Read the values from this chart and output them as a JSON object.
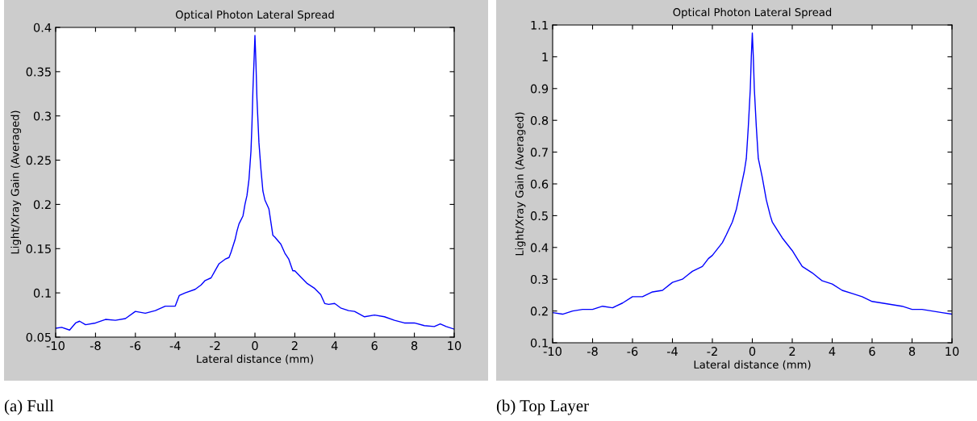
{
  "chart_data": [
    {
      "type": "line",
      "title": "Optical Photon Lateral Spread",
      "xlabel": "Lateral distance (mm)",
      "ylabel": "Light/Xray Gain (Averaged)",
      "annotations": [
        "(a) Full"
      ],
      "xlim": [
        -10,
        10
      ],
      "xticks": [
        -10,
        -8,
        -6,
        -4,
        -2,
        0,
        2,
        4,
        6,
        8,
        10
      ],
      "ylim": [
        0.05,
        0.4
      ],
      "yticks": [
        0.05,
        0.1,
        0.15,
        0.2,
        0.25,
        0.3,
        0.35,
        0.4
      ],
      "grid": false,
      "legend": false,
      "series": [
        {
          "color": "#0000ff",
          "x": [
            -10,
            -9.7,
            -9.3,
            -9,
            -8.8,
            -8.5,
            -8,
            -7.5,
            -7,
            -6.5,
            -6,
            -5.5,
            -5,
            -4.5,
            -4,
            -3.8,
            -3.5,
            -3,
            -2.7,
            -2.5,
            -2.2,
            -2,
            -1.8,
            -1.5,
            -1.3,
            -1.2,
            -1,
            -0.9,
            -0.8,
            -0.6,
            -0.5,
            -0.4,
            -0.3,
            -0.2,
            -0.15,
            -0.1,
            -0.05,
            0,
            0.05,
            0.1,
            0.2,
            0.3,
            0.4,
            0.5,
            0.7,
            0.8,
            0.9,
            1,
            1.3,
            1.5,
            1.7,
            1.9,
            2,
            2.3,
            2.6,
            3,
            3.3,
            3.5,
            3.7,
            4,
            4.3,
            4.7,
            5,
            5.5,
            6,
            6.5,
            7,
            7.5,
            8,
            8.5,
            9,
            9.3,
            9.6,
            10
          ],
          "values": [
            0.06,
            0.061,
            0.058,
            0.066,
            0.068,
            0.064,
            0.066,
            0.07,
            0.069,
            0.071,
            0.079,
            0.077,
            0.08,
            0.085,
            0.085,
            0.097,
            0.1,
            0.104,
            0.109,
            0.114,
            0.117,
            0.125,
            0.133,
            0.138,
            0.14,
            0.146,
            0.16,
            0.17,
            0.178,
            0.187,
            0.2,
            0.21,
            0.228,
            0.26,
            0.29,
            0.33,
            0.36,
            0.391,
            0.36,
            0.32,
            0.27,
            0.24,
            0.215,
            0.205,
            0.195,
            0.18,
            0.165,
            0.163,
            0.155,
            0.145,
            0.138,
            0.125,
            0.125,
            0.118,
            0.111,
            0.105,
            0.098,
            0.088,
            0.087,
            0.088,
            0.083,
            0.08,
            0.079,
            0.073,
            0.075,
            0.073,
            0.069,
            0.066,
            0.066,
            0.063,
            0.062,
            0.065,
            0.062,
            0.059
          ]
        }
      ]
    },
    {
      "type": "line",
      "title": "Optical Photon Lateral Spread",
      "xlabel": "Lateral distance (mm)",
      "ylabel": "Light/Xray Gain (Averaged)",
      "annotations": [
        "(b) Top Layer"
      ],
      "xlim": [
        -10,
        10
      ],
      "xticks": [
        -10,
        -8,
        -6,
        -4,
        -2,
        0,
        2,
        4,
        6,
        8,
        10
      ],
      "ylim": [
        0.1,
        1.1
      ],
      "yticks": [
        0.1,
        0.2,
        0.3,
        0.4,
        0.5,
        0.6,
        0.7,
        0.8,
        0.9,
        1,
        1.1
      ],
      "grid": false,
      "legend": false,
      "series": [
        {
          "color": "#0000ff",
          "x": [
            -10,
            -9.5,
            -9,
            -8.5,
            -8,
            -7.5,
            -7,
            -6.5,
            -6,
            -5.5,
            -5,
            -4.5,
            -4,
            -3.5,
            -3.2,
            -3,
            -2.5,
            -2.2,
            -2,
            -1.5,
            -1.3,
            -1,
            -0.8,
            -0.6,
            -0.5,
            -0.4,
            -0.3,
            -0.2,
            -0.1,
            -0.05,
            0,
            0.05,
            0.1,
            0.2,
            0.3,
            0.5,
            0.7,
            0.9,
            1,
            1.5,
            2,
            2.3,
            2.5,
            3,
            3.5,
            4,
            4.5,
            5,
            5.5,
            6,
            6.5,
            7,
            7.5,
            8,
            8.5,
            9,
            9.5,
            10
          ],
          "values": [
            0.195,
            0.19,
            0.2,
            0.205,
            0.205,
            0.215,
            0.21,
            0.225,
            0.245,
            0.245,
            0.26,
            0.265,
            0.29,
            0.3,
            0.315,
            0.325,
            0.34,
            0.365,
            0.375,
            0.415,
            0.44,
            0.48,
            0.52,
            0.58,
            0.61,
            0.64,
            0.68,
            0.78,
            0.9,
            1.0,
            1.075,
            1.0,
            0.9,
            0.78,
            0.68,
            0.62,
            0.55,
            0.5,
            0.48,
            0.43,
            0.39,
            0.36,
            0.34,
            0.32,
            0.295,
            0.285,
            0.265,
            0.255,
            0.245,
            0.23,
            0.225,
            0.22,
            0.215,
            0.205,
            0.205,
            0.2,
            0.195,
            0.19
          ]
        }
      ]
    }
  ]
}
